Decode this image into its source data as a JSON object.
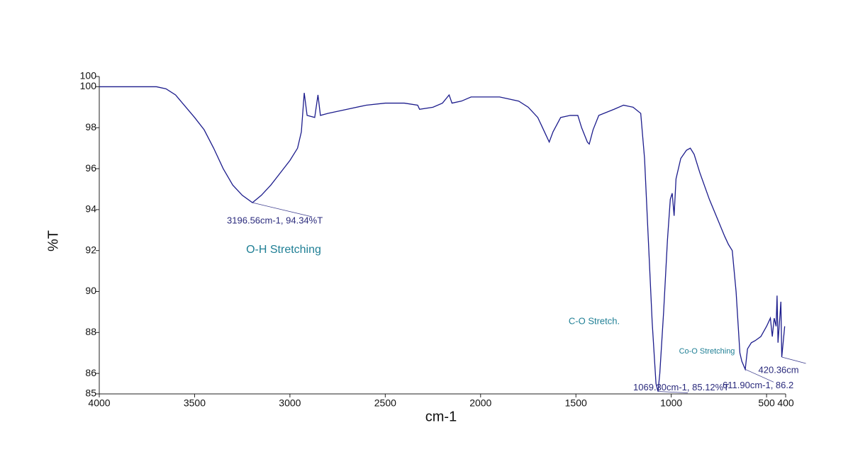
{
  "chart_data": {
    "type": "line",
    "x_label": "cm-1",
    "y_label": "%T",
    "xlim": [
      4000,
      400
    ],
    "xticks": [
      4000,
      3500,
      3000,
      2500,
      2000,
      1500,
      1000,
      500,
      400
    ],
    "ylim": [
      85,
      100.5
    ],
    "yticks": [
      85,
      86,
      88,
      90,
      92,
      94,
      96,
      98,
      100,
      {
        "value": 100.5,
        "label": "100"
      }
    ],
    "color": "#1c1c8c",
    "x": [
      4000,
      3700,
      3650,
      3600,
      3500,
      3450,
      3400,
      3350,
      3300,
      3250,
      3196.56,
      3150,
      3100,
      3050,
      3000,
      2960,
      2940,
      2925,
      2910,
      2870,
      2853,
      2840,
      2800,
      2700,
      2600,
      2500,
      2400,
      2330,
      2320,
      2250,
      2200,
      2165,
      2150,
      2100,
      2050,
      2000,
      1900,
      1800,
      1750,
      1700,
      1660,
      1640,
      1620,
      1580,
      1530,
      1490,
      1470,
      1440,
      1430,
      1410,
      1380,
      1300,
      1250,
      1200,
      1160,
      1140,
      1120,
      1100,
      1080,
      1069.3,
      1060,
      1040,
      1020,
      1005,
      995,
      985,
      975,
      950,
      920,
      900,
      880,
      850,
      800,
      760,
      720,
      700,
      680,
      660,
      640,
      630,
      611.9,
      600,
      580,
      560,
      530,
      500,
      480,
      470,
      460,
      450,
      445,
      440,
      430,
      425,
      420.36,
      410,
      405
    ],
    "values": [
      100.0,
      100.0,
      99.9,
      99.6,
      98.5,
      97.9,
      97.0,
      96.0,
      95.2,
      94.7,
      94.34,
      94.7,
      95.2,
      95.8,
      96.4,
      97.0,
      97.8,
      99.7,
      98.6,
      98.5,
      99.6,
      98.6,
      98.7,
      98.9,
      99.1,
      99.2,
      99.2,
      99.1,
      98.9,
      99.0,
      99.2,
      99.6,
      99.2,
      99.3,
      99.5,
      99.5,
      99.5,
      99.3,
      99.0,
      98.5,
      97.7,
      97.3,
      97.8,
      98.5,
      98.6,
      98.6,
      98.0,
      97.3,
      97.2,
      97.9,
      98.6,
      98.9,
      99.1,
      99.0,
      98.7,
      96.5,
      92.5,
      88.5,
      85.5,
      85.12,
      86.0,
      89.0,
      92.5,
      94.5,
      94.8,
      93.7,
      95.5,
      96.5,
      96.9,
      97.0,
      96.7,
      95.8,
      94.5,
      93.6,
      92.7,
      92.3,
      92.0,
      90.0,
      87.0,
      86.6,
      86.2,
      87.2,
      87.5,
      87.6,
      87.8,
      88.3,
      88.7,
      87.8,
      88.7,
      88.3,
      89.8,
      87.5,
      88.8,
      89.5,
      86.8,
      87.8,
      88.3
    ],
    "annotations": [
      {
        "text": "3196.56cm-1, 94.34%T",
        "x": 3196.56,
        "y": 94.34
      },
      {
        "text": "1069.30cm-1, 85.12%T",
        "x": 1069.3,
        "y": 85.12
      },
      {
        "text": "611.90cm-1, 86.2",
        "x": 611.9,
        "y": 86.2
      },
      {
        "text": "420.36cm",
        "x": 420.36,
        "y": 86.8
      }
    ],
    "region_labels": [
      "O-H Stretching",
      "C-O Stretch.",
      "Co-O Stretching"
    ]
  }
}
